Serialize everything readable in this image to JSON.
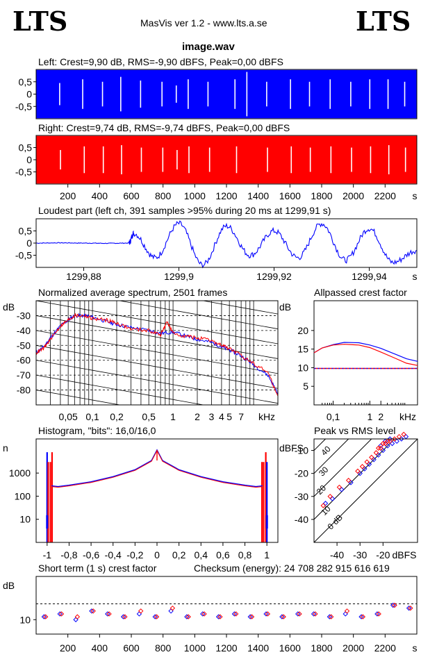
{
  "header": {
    "logo_left": "LTS",
    "logo_right": "LTS",
    "app_title": "MasVis ver 1.2 - www.lts.a.se",
    "file_name": "image.wav"
  },
  "colors": {
    "left": "#0000ff",
    "right": "#ff0000",
    "grid": "#000000"
  },
  "panels": {
    "left_wave": "Left: Crest=9,90 dB, RMS=-9,90 dBFS, Peak=0,00 dBFS",
    "right_wave": "Right: Crest=9,74 dB, RMS=-9,74 dBFS, Peak=0,00 dBFS",
    "loudest": "Loudest part (left  ch, 391 samples >95% during 20 ms at 1299,91 s)",
    "spectrum": "Normalized average spectrum, 2501 frames",
    "allpassed": "Allpassed crest factor",
    "histogram": "Histogram, \"bits\": 16,0/16,0",
    "peak_rms": "Peak vs RMS level",
    "short_term": "Short term (1 s) crest factor",
    "checksum": "Checksum (energy):  24 708 282 915 616 619"
  },
  "chart_data": [
    {
      "id": "left_waveform",
      "type": "area",
      "title": "Left: Crest=9,90 dB, RMS=-9,90 dBFS, Peak=0,00 dBFS",
      "ylim": [
        -1,
        1
      ],
      "yticks": [
        "0,5",
        "0",
        "-0,5"
      ],
      "xlim": [
        0,
        2400
      ],
      "series": [
        {
          "values": [
            0.98,
            -0.98
          ]
        }
      ]
    },
    {
      "id": "right_waveform",
      "type": "area",
      "title": "Right: Crest=9,74 dB, RMS=-9,74 dBFS, Peak=0,00 dBFS",
      "ylim": [
        -1,
        1
      ],
      "yticks": [
        "0,5",
        "0",
        "-0,5"
      ],
      "xlim": [
        0,
        2400
      ],
      "xticks": [
        "200",
        "400",
        "600",
        "800",
        "1000",
        "1200",
        "1400",
        "1600",
        "1800",
        "2000",
        "2200"
      ],
      "xunit": "s",
      "series": [
        {
          "values": [
            0.98,
            -0.98
          ]
        }
      ]
    },
    {
      "id": "loudest_part",
      "type": "line",
      "title": "Loudest part (left  ch, 391 samples >95% during 20 ms at 1299,91 s)",
      "xlim": [
        1299.87,
        1299.95
      ],
      "ylim": [
        -1,
        1
      ],
      "yticks": [
        "0,5",
        "0",
        "-0,5"
      ],
      "xticks": [
        "1299,88",
        "1299,9",
        "1299,92",
        "1299,94"
      ],
      "xtick_values": [
        1299.88,
        1299.9,
        1299.92,
        1299.94
      ],
      "xunit": "s",
      "series": [
        {
          "x": [
            1299.87,
            1299.875,
            1299.88,
            1299.885,
            1299.8895,
            1299.8905,
            1299.895,
            1299.9,
            1299.905,
            1299.91,
            1299.915,
            1299.92,
            1299.925,
            1299.93,
            1299.935,
            1299.94,
            1299.945,
            1299.95
          ],
          "y": [
            0.0,
            0.01,
            0.0,
            -0.01,
            0.0,
            0.4,
            -0.6,
            0.8,
            -0.9,
            0.7,
            -0.5,
            0.5,
            -0.6,
            0.8,
            -0.7,
            0.6,
            -0.8,
            -0.3
          ]
        }
      ]
    },
    {
      "id": "spectrum",
      "type": "line",
      "title": "Normalized average spectrum, 2501 frames",
      "ylabel": "dB",
      "xunit": "kHz",
      "xscale": "log",
      "xlim": [
        0.02,
        20
      ],
      "ylim": [
        -90,
        -20
      ],
      "yticks": [
        "-30",
        "-40",
        "-50",
        "-60",
        "-70",
        "-80"
      ],
      "ytick_values": [
        -30,
        -40,
        -50,
        -60,
        -70,
        -80
      ],
      "xticks": [
        "0,05",
        "0,1",
        "0,2",
        "0,5",
        "1",
        "2",
        "3",
        "4",
        "5",
        "7"
      ],
      "xtick_values": [
        0.05,
        0.1,
        0.2,
        0.5,
        1,
        2,
        3,
        4,
        5,
        7
      ],
      "series": [
        {
          "x": [
            0.02,
            0.025,
            0.03,
            0.04,
            0.05,
            0.06,
            0.08,
            0.1,
            0.15,
            0.2,
            0.3,
            0.5,
            0.7,
            1.0,
            1.5,
            2,
            3,
            4,
            5,
            7,
            10,
            15,
            20
          ],
          "y": [
            -55,
            -51,
            -45,
            -37,
            -33,
            -30,
            -30,
            -31,
            -34,
            -36,
            -38,
            -40,
            -42,
            -41,
            -44,
            -46,
            -48,
            -51,
            -53,
            -57,
            -63,
            -70,
            -82
          ]
        },
        {
          "x": [
            0.02,
            0.025,
            0.03,
            0.04,
            0.05,
            0.06,
            0.08,
            0.1,
            0.15,
            0.2,
            0.3,
            0.5,
            0.7,
            0.85,
            1.0,
            1.5,
            2,
            3,
            4,
            5,
            7,
            10,
            15,
            20
          ],
          "y": [
            -55,
            -52,
            -46,
            -37,
            -33,
            -30,
            -30,
            -32,
            -33,
            -35,
            -39,
            -40,
            -43,
            -34,
            -42,
            -44,
            -45,
            -47,
            -50,
            -52,
            -57,
            -62,
            -68,
            -84
          ]
        }
      ]
    },
    {
      "id": "allpassed_crest",
      "type": "line",
      "title": "Allpassed crest factor",
      "ylabel": "dB",
      "xunit": "kHz",
      "xscale": "log",
      "xlim": [
        0.03,
        20
      ],
      "ylim": [
        0,
        28
      ],
      "yticks": [
        "20",
        "15",
        "10",
        "5"
      ],
      "ytick_values": [
        20,
        15,
        10,
        5
      ],
      "xticks": [
        "0,1",
        "1",
        "2"
      ],
      "xtick_values": [
        0.1,
        1,
        2
      ],
      "reference_line": 9.8,
      "series": [
        {
          "x": [
            0.03,
            0.05,
            0.1,
            0.2,
            0.5,
            1,
            2,
            5,
            10,
            20
          ],
          "y": [
            14.0,
            15.3,
            16.2,
            16.8,
            16.7,
            16.1,
            15.2,
            13.6,
            12.4,
            11.7
          ]
        },
        {
          "x": [
            0.03,
            0.05,
            0.1,
            0.2,
            0.5,
            1,
            2,
            5,
            10,
            20
          ],
          "y": [
            14.0,
            15.3,
            16.1,
            16.3,
            16.1,
            15.4,
            14.2,
            12.5,
            11.2,
            10.6
          ]
        }
      ]
    },
    {
      "id": "histogram",
      "type": "line",
      "title": "Histogram, \"bits\": 16,0/16,0",
      "ylabel": "n",
      "yscale": "log",
      "xlim": [
        -1.1,
        1.1
      ],
      "ylim": [
        1,
        30000
      ],
      "yticks": [
        "1000",
        "100",
        "10"
      ],
      "ytick_values": [
        1000,
        100,
        10
      ],
      "xticks": [
        "-1",
        "-0,8",
        "-0,6",
        "-0,4",
        "-0,2",
        "0",
        "0,2",
        "0,4",
        "0,6",
        "0,8",
        "1"
      ],
      "xtick_values": [
        -1,
        -0.8,
        -0.6,
        -0.4,
        -0.2,
        0,
        0.2,
        0.4,
        0.6,
        0.8,
        1
      ],
      "series": [
        {
          "x": [
            -1.0,
            -0.98,
            -0.96,
            -0.9,
            -0.8,
            -0.6,
            -0.4,
            -0.2,
            -0.05,
            0,
            0.05,
            0.2,
            0.4,
            0.6,
            0.8,
            0.9,
            0.96,
            0.98,
            1.0
          ],
          "y": [
            10,
            5000,
            280,
            260,
            300,
            420,
            700,
            1400,
            3500,
            10000,
            3500,
            1400,
            700,
            420,
            300,
            260,
            280,
            5000,
            10
          ]
        }
      ]
    },
    {
      "id": "peak_vs_rms",
      "type": "scatter",
      "title": "Peak vs RMS level",
      "ylabel": "dBFS",
      "xlabel": "dBFS",
      "xlim": [
        -50,
        -5
      ],
      "ylim": [
        -50,
        -5
      ],
      "yticks": [
        "-10",
        "-20",
        "-30",
        "-40"
      ],
      "ytick_values": [
        -10,
        -20,
        -30,
        -40
      ],
      "xticks": [
        "-40",
        "-30",
        "-20"
      ],
      "xtick_values": [
        -40,
        -30,
        -20
      ],
      "diagonal_labels": [
        "0 dB",
        "10",
        "20",
        "30",
        "40"
      ],
      "series": [
        {
          "x": [
            -45,
            -42,
            -38,
            -34,
            -30,
            -28,
            -26,
            -24,
            -22,
            -20,
            -18,
            -16,
            -14,
            -12,
            -10,
            -21,
            -19,
            -17
          ],
          "y": [
            -33,
            -31,
            -27,
            -24,
            -20,
            -18,
            -16,
            -14,
            -12,
            -10,
            -8,
            -7,
            -6,
            -5,
            -4,
            -8,
            -6,
            -5
          ]
        },
        {
          "x": [
            -46,
            -43,
            -39,
            -35,
            -31,
            -29,
            -27,
            -25,
            -23,
            -21,
            -19,
            -17,
            -15,
            -13,
            -11,
            -22,
            -20,
            -18
          ],
          "y": [
            -34,
            -30,
            -26,
            -23,
            -19,
            -17,
            -15,
            -13,
            -11,
            -9,
            -7,
            -6,
            -5,
            -4,
            -3,
            -9,
            -7,
            -6
          ]
        }
      ]
    },
    {
      "id": "short_term_crest",
      "type": "scatter",
      "title": "Short term (1 s) crest factor",
      "ylabel": "dB",
      "xunit": "s",
      "xlim": [
        0,
        2400
      ],
      "ylim": [
        5,
        25
      ],
      "yticks": [
        "10"
      ],
      "ytick_values": [
        10
      ],
      "xticks": [
        "200",
        "400",
        "600",
        "800",
        "1000",
        "1200",
        "1400",
        "1600",
        "1800",
        "2000",
        "2200"
      ],
      "xtick_values": [
        200,
        400,
        600,
        800,
        1000,
        1200,
        1400,
        1600,
        1800,
        2000,
        2200
      ],
      "reference_line": 15.5,
      "series": [
        {
          "x": [
            50,
            150,
            250,
            350,
            450,
            550,
            650,
            750,
            850,
            950,
            1050,
            1150,
            1250,
            1350,
            1450,
            1550,
            1650,
            1750,
            1850,
            1950,
            2050,
            2150,
            2250,
            2350
          ],
          "y": [
            11,
            12,
            10,
            13,
            12,
            11,
            12,
            11,
            13,
            11,
            12,
            11,
            12,
            11,
            12,
            11,
            12,
            12,
            11,
            12,
            11,
            12,
            15,
            14
          ]
        },
        {
          "x": [
            60,
            160,
            260,
            360,
            460,
            560,
            660,
            760,
            860,
            960,
            1060,
            1160,
            1260,
            1360,
            1460,
            1560,
            1660,
            1760,
            1860,
            1960,
            2060,
            2160,
            2260,
            2360
          ],
          "y": [
            11,
            12,
            11,
            13,
            12,
            11,
            13,
            11,
            14,
            11,
            12,
            11,
            12,
            11,
            12,
            11,
            12,
            12,
            11,
            13,
            11,
            12,
            15,
            14
          ]
        }
      ]
    }
  ]
}
